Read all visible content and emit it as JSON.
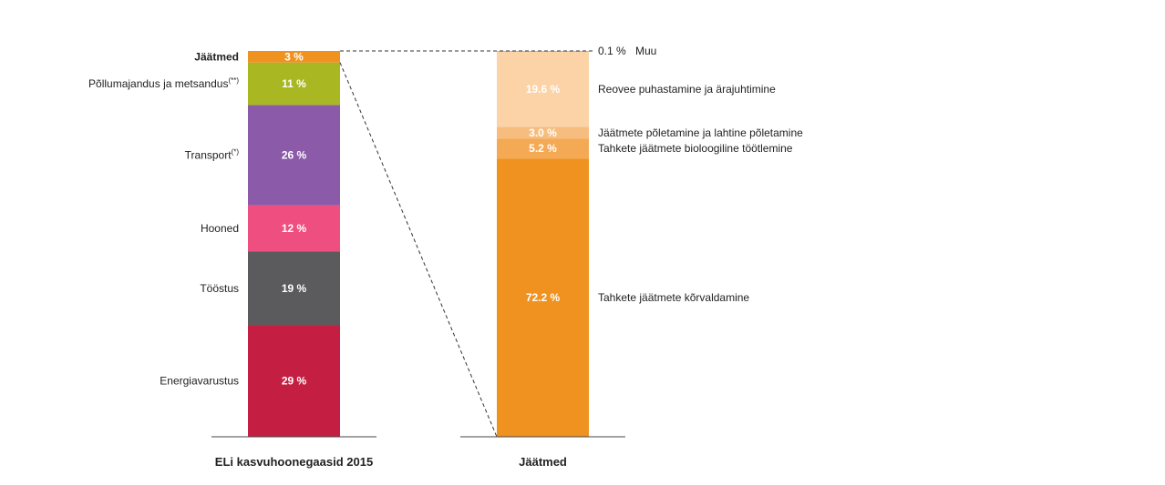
{
  "chart_data": [
    {
      "type": "bar",
      "stacked": true,
      "title": "ELi kasvuhoonegaasid 2015",
      "series": [
        {
          "name": "Energiavarustus",
          "value": 29,
          "label": "29 %",
          "note": "",
          "color": "#c41f43"
        },
        {
          "name": "Tööstus",
          "value": 19,
          "label": "19 %",
          "note": "",
          "color": "#5b5b5e"
        },
        {
          "name": "Hooned",
          "value": 12,
          "label": "12 %",
          "note": "",
          "color": "#ee4f80"
        },
        {
          "name": "Transport",
          "value": 26,
          "label": "26 %",
          "note": "(*)",
          "color": "#8b5aa8"
        },
        {
          "name": "Põllumajandus ja metsandus",
          "value": 11,
          "label": "11 %",
          "note": "(**)",
          "color": "#a8b722"
        },
        {
          "name": "Jäätmed",
          "value": 3,
          "label": "3 %",
          "note": "",
          "color": "#f0921f"
        }
      ]
    },
    {
      "type": "bar",
      "stacked": true,
      "title": "Jäätmed",
      "series": [
        {
          "name": "Tahkete jäätmete kõrvaldamine",
          "value": 72.2,
          "label": "72.2 %",
          "color": "#f0921f"
        },
        {
          "name": "Tahkete jäätmete bioloogiline töötlemine",
          "value": 5.2,
          "label": "5.2 %",
          "color": "#f4a955"
        },
        {
          "name": "Jäätmete põletamine ja lahtine põletamine",
          "value": 3.0,
          "label": "3.0 %",
          "color": "#f7bd7f"
        },
        {
          "name": "Reovee puhastamine ja ärajuhtimine",
          "value": 19.6,
          "label": "19.6 %",
          "color": "#fbd3a7"
        },
        {
          "name": "Muu",
          "value": 0.1,
          "label": "0.1 %",
          "color": "#f0921f"
        }
      ]
    }
  ]
}
